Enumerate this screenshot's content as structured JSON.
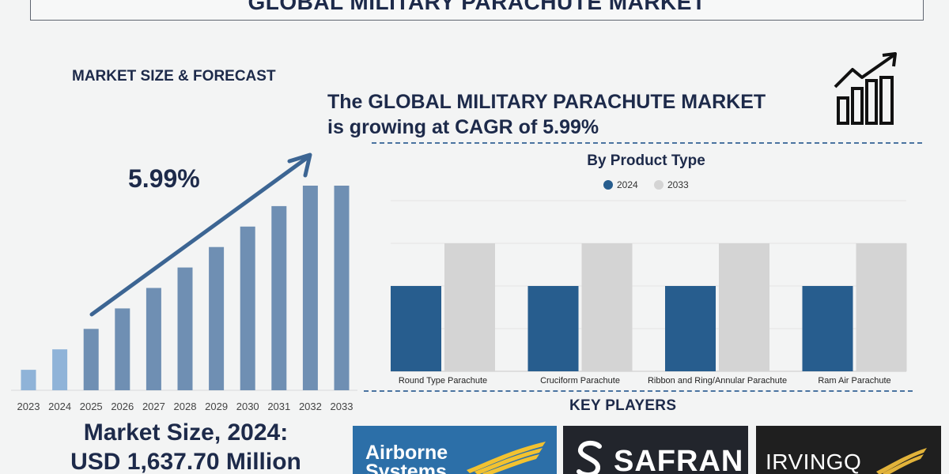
{
  "header": {
    "title": "GLOBAL MILITARY PARACHUTE MARKET"
  },
  "left_panel": {
    "section_label": "MARKET SIZE & FORECAST",
    "cagr": "5.99%",
    "market_size_line1": "Market Size, 2024:",
    "market_size_line2": "USD 1,637.70 Million"
  },
  "headline": {
    "line1": "The GLOBAL MILITARY PARACHUTE MARKET",
    "line2": "is growing at CAGR of 5.99%"
  },
  "key_players": {
    "label": "KEY PLAYERS",
    "logos": [
      {
        "line1": "Airborne",
        "line2": "Systems"
      },
      {
        "name": "SAFRAN"
      },
      {
        "name": "IRVINGQ"
      }
    ]
  },
  "icons": {
    "trend": "bar-chart-rising-arrow-icon",
    "airborne": "wing-icon",
    "safran": "safran-s-icon",
    "irving": "wing-icon"
  },
  "colors": {
    "navy": "#1d2a4a",
    "bar_2024": "#275d8e",
    "bar_2033": "#d4d4d4",
    "forecast_bar": "#6f8fb3",
    "forecast_bar_light": "#8fb3d8"
  },
  "chart_data": [
    {
      "type": "bar",
      "title": "",
      "categories": [
        "2023",
        "2024",
        "2025",
        "2026",
        "2027",
        "2028",
        "2029",
        "2030",
        "2031",
        "2032",
        "2033"
      ],
      "values": [
        10,
        20,
        30,
        40,
        50,
        60,
        70,
        80,
        90,
        100,
        100
      ],
      "xlabel": "",
      "ylabel": "",
      "ylim": [
        0,
        100
      ],
      "grid": false,
      "annotation": "5.99%"
    },
    {
      "type": "bar",
      "title": "By Product Type",
      "categories": [
        "Round Type Parachute",
        "Cruciform Parachute",
        "Ribbon and Ring/Annular Parachute",
        "Ram Air Parachute"
      ],
      "series": [
        {
          "name": "2024",
          "values": [
            2,
            2,
            2,
            2
          ]
        },
        {
          "name": "2033",
          "values": [
            3,
            3,
            3,
            3
          ]
        }
      ],
      "xlabel": "",
      "ylabel": "",
      "ylim": [
        0,
        4
      ],
      "grid": true,
      "legend": "top-center"
    }
  ]
}
